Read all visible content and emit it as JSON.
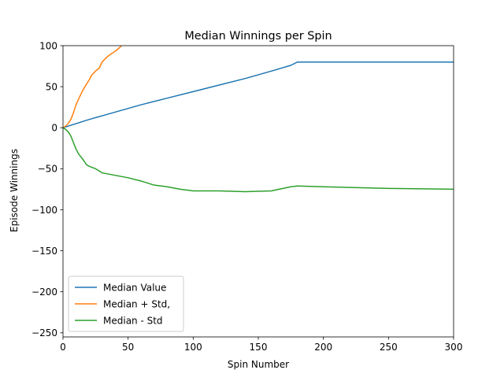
{
  "chart_data": {
    "type": "line",
    "title": "Median Winnings per Spin",
    "xlabel": "Spin Number",
    "ylabel": "Episode Winnings",
    "xlim": [
      0,
      300
    ],
    "ylim": [
      -255,
      100
    ],
    "xticks": [
      0,
      50,
      100,
      150,
      200,
      250,
      300
    ],
    "yticks": [
      100,
      50,
      0,
      -50,
      -100,
      -150,
      -200,
      -250
    ],
    "grid": false,
    "legend_position": "lower-left",
    "series": [
      {
        "name": "Median Value",
        "color": "#1f77b4",
        "x": [
          0,
          20,
          40,
          60,
          80,
          100,
          120,
          140,
          160,
          175,
          180,
          200,
          250,
          300
        ],
        "y": [
          0,
          10,
          19,
          28,
          36,
          44,
          52,
          60,
          69,
          76,
          80,
          80,
          80,
          80
        ]
      },
      {
        "name": "Median + Std,",
        "color": "#ff7f0e",
        "x": [
          0,
          2,
          4,
          6,
          8,
          10,
          12,
          15,
          18,
          20,
          22,
          25,
          28,
          30,
          33,
          36,
          40,
          43,
          45
        ],
        "y": [
          0,
          2,
          5,
          10,
          18,
          28,
          35,
          45,
          53,
          58,
          64,
          69,
          73,
          80,
          85,
          89,
          93,
          97,
          100
        ]
      },
      {
        "name": "Median - Std",
        "color": "#2ca02c",
        "x": [
          0,
          2,
          4,
          6,
          8,
          10,
          12,
          15,
          18,
          20,
          25,
          30,
          40,
          50,
          60,
          70,
          80,
          90,
          100,
          120,
          140,
          160,
          175,
          180,
          200,
          250,
          300
        ],
        "y": [
          0,
          -2,
          -5,
          -10,
          -18,
          -26,
          -32,
          -38,
          -45,
          -47,
          -50,
          -55,
          -58,
          -61,
          -65,
          -70,
          -72,
          -75,
          -77,
          -77,
          -78,
          -77,
          -72,
          -71,
          -72,
          -74,
          -75
        ]
      }
    ]
  }
}
